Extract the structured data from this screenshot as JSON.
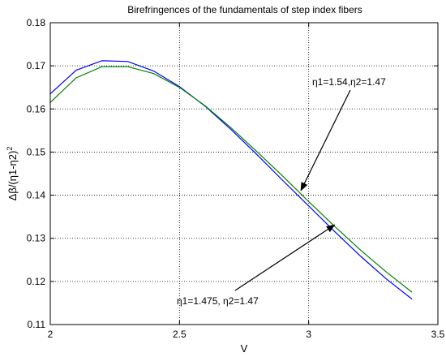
{
  "chart_data": {
    "type": "line",
    "title": "Birefringences of the fundamentals of step  index fibers",
    "xlabel": "V",
    "ylabel_parts": {
      "base": "Δβ/(η1-η2)",
      "exponent": "2"
    },
    "xlim": [
      2,
      3.5
    ],
    "ylim": [
      0.11,
      0.18
    ],
    "xticks": [
      2,
      2.5,
      3,
      3.5
    ],
    "xtick_labels": [
      "2",
      "2.5",
      "3",
      "3.5"
    ],
    "yticks": [
      0.11,
      0.12,
      0.13,
      0.14,
      0.15,
      0.16,
      0.17,
      0.18
    ],
    "ytick_labels": [
      "0.11",
      "0.12",
      "0.13",
      "0.14",
      "0.15",
      "0.16",
      "0.17",
      "0.18"
    ],
    "grid": true,
    "grid_style": "dotted",
    "series": [
      {
        "color": "#0000ff",
        "x": [
          2.0,
          2.1,
          2.2,
          2.3,
          2.4,
          2.5,
          2.6,
          2.7,
          2.8,
          2.9,
          3.0,
          3.1,
          3.2,
          3.3,
          3.4
        ],
        "y": [
          0.1635,
          0.169,
          0.1712,
          0.171,
          0.1688,
          0.1652,
          0.1606,
          0.1552,
          0.1494,
          0.1434,
          0.1375,
          0.1316,
          0.1259,
          0.1206,
          0.1159
        ]
      },
      {
        "color": "#008000",
        "x": [
          2.0,
          2.1,
          2.2,
          2.3,
          2.4,
          2.5,
          2.6,
          2.7,
          2.8,
          2.9,
          3.0,
          3.1,
          3.2,
          3.3,
          3.4
        ],
        "y": [
          0.1615,
          0.1672,
          0.1698,
          0.1698,
          0.1682,
          0.165,
          0.1607,
          0.1556,
          0.1501,
          0.1444,
          0.1385,
          0.1328,
          0.1273,
          0.1222,
          0.1175
        ]
      }
    ],
    "annotations": [
      {
        "text": "η1=1.54,η2=1.47",
        "arrow_to": [
          2.97,
          0.1411
        ]
      },
      {
        "text": "η1=1.475, η2=1.47",
        "arrow_to": [
          3.1,
          0.1331
        ]
      }
    ]
  }
}
